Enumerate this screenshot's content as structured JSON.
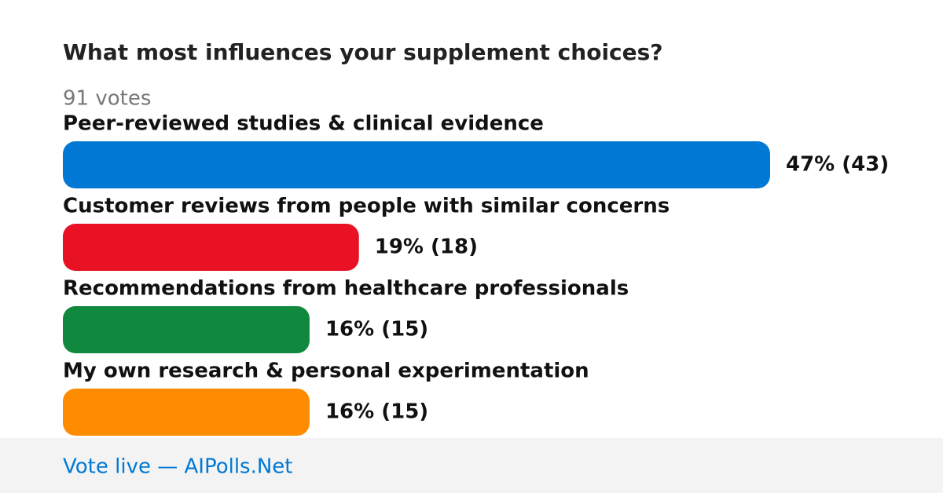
{
  "chart_data": {
    "type": "bar",
    "title": "What most influences your supplement choices?",
    "subtitle": "91 votes",
    "categories": [
      "Peer-reviewed studies & clinical evidence",
      "Customer reviews from people with similar concerns",
      "Recommendations from healthcare professionals",
      "My own research & personal experimentation"
    ],
    "values": [
      43,
      18,
      15,
      15
    ],
    "value_labels": [
      "47% (43)",
      "19% (18)",
      "16% (15)",
      "16% (15)"
    ],
    "colors": [
      "#0078d4",
      "#e81224",
      "#10893e",
      "#ff8c00"
    ]
  },
  "footer": {
    "text": "Vote live — AIPolls.Net"
  }
}
